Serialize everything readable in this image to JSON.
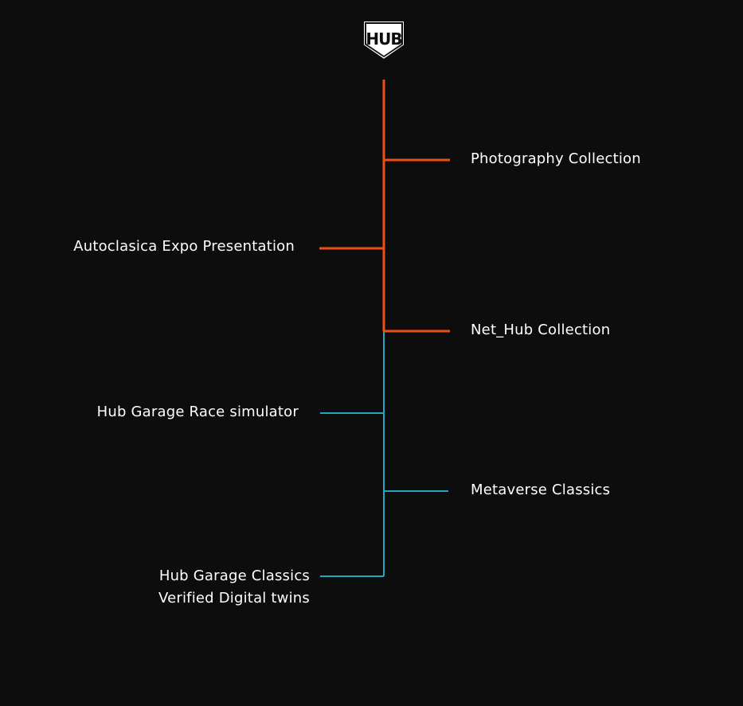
{
  "logo": {
    "text": "HUB"
  },
  "colors": {
    "background": "#0d0d0d",
    "orange": "#ee4f17",
    "teal": "#1ea6c3",
    "text": "#ffffff"
  },
  "items": [
    {
      "label": "Photography Collection"
    },
    {
      "label": "Autoclasica Expo Presentation"
    },
    {
      "label": "Net_Hub Collection"
    },
    {
      "label": "Hub Garage Race simulator"
    },
    {
      "label": "Metaverse Classics"
    },
    {
      "label_line1": "Hub Garage Classics",
      "label_line2": "Verified Digital twins"
    }
  ]
}
